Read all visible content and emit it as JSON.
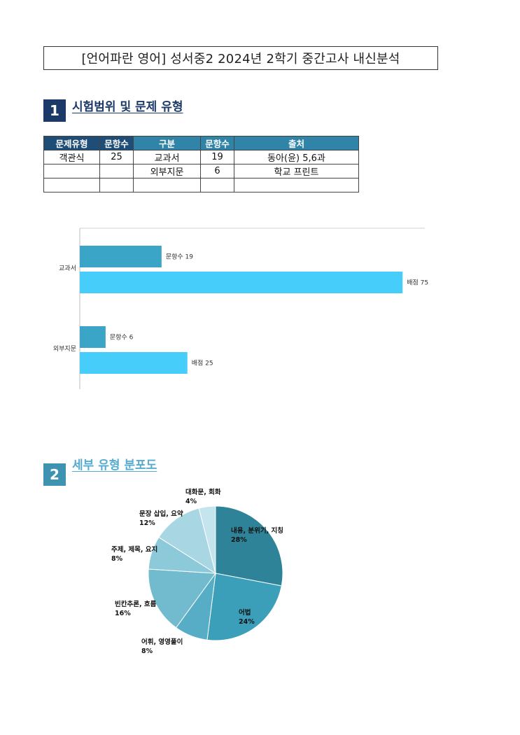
{
  "title": "[언어파란 영어] 성서중2 2024년 2학기 중간고사 내신분석",
  "sections": [
    {
      "num": "1",
      "title": "시험범위 및 문제 유형"
    },
    {
      "num": "2",
      "title": "세부 유형 분포도"
    }
  ],
  "range_table": {
    "headers": [
      "문제유형",
      "문항수",
      "구분",
      "문항수",
      "출처"
    ],
    "rows": [
      [
        "객관식",
        "25",
        "교과서",
        "19",
        "동아(윤) 5,6과"
      ],
      [
        "",
        "",
        "외부지문",
        "6",
        "학교 프린트"
      ],
      [
        "",
        "",
        "",
        "",
        ""
      ]
    ]
  },
  "chart_data": [
    {
      "type": "bar",
      "orientation": "horizontal",
      "categories": [
        "교과서",
        "외부지문"
      ],
      "series": [
        {
          "name": "문항수",
          "values": [
            19,
            6
          ],
          "color": "#3ba5c7"
        },
        {
          "name": "배점",
          "values": [
            75,
            25
          ],
          "color": "#46cdf9"
        }
      ],
      "data_labels": [
        [
          "문항수 19",
          "배점 75"
        ],
        [
          "문항수 6",
          "배점 25"
        ]
      ],
      "xlim": [
        0,
        80
      ],
      "grid": false
    },
    {
      "type": "pie",
      "slices": [
        {
          "label": "내용, 분위기, 지칭",
          "pct_label": "28%",
          "value": 28,
          "color": "#2e8398"
        },
        {
          "label": "어법",
          "pct_label": "24%",
          "value": 24,
          "color": "#3b9fba"
        },
        {
          "label": "어휘, 영영풀이",
          "pct_label": "8%",
          "value": 8,
          "color": "#56adc5"
        },
        {
          "label": "빈칸추론, 흐름",
          "pct_label": "16%",
          "value": 16,
          "color": "#72bbcf"
        },
        {
          "label": "주제, 제목, 요지",
          "pct_label": "8%",
          "value": 8,
          "color": "#8ccad9"
        },
        {
          "label": "문장 삽입, 요약",
          "pct_label": "12%",
          "value": 12,
          "color": "#a8d7e3"
        },
        {
          "label": "대화문, 회화",
          "pct_label": "4%",
          "value": 4,
          "color": "#c5e5ee"
        }
      ]
    }
  ]
}
